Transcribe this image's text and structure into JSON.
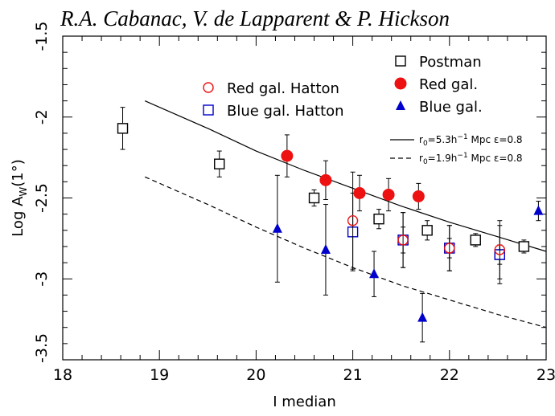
{
  "header": {
    "authors": "R.A. Cabanac, V. de Lapparent & P. Hickson"
  },
  "chart_data": {
    "type": "scatter",
    "xlabel": "I median",
    "ylabel_base": "Log A",
    "ylabel_sub": "W",
    "ylabel_tail": "(1°)",
    "xlim": [
      18,
      23
    ],
    "ylim": [
      -3.5,
      -1.5
    ],
    "xticks": [
      "18",
      "19",
      "20",
      "21",
      "22",
      "23"
    ],
    "yticks": [
      "-1.5",
      "-2",
      "-2.5",
      "-3",
      "-3.5"
    ],
    "series": [
      {
        "name": "Postman",
        "marker": "square-open",
        "color": "#000000",
        "points": [
          {
            "x": 18.62,
            "y": -2.07,
            "err": 0.13
          },
          {
            "x": 19.62,
            "y": -2.29,
            "err": 0.08
          },
          {
            "x": 20.6,
            "y": -2.5,
            "err": 0.05
          },
          {
            "x": 21.27,
            "y": -2.63,
            "err": 0.06
          },
          {
            "x": 21.52,
            "y": -2.76,
            "err": 0.08
          },
          {
            "x": 21.77,
            "y": -2.7,
            "err": 0.06
          },
          {
            "x": 22.0,
            "y": -2.81,
            "err": 0.06
          },
          {
            "x": 22.27,
            "y": -2.76,
            "err": 0.04
          },
          {
            "x": 22.52,
            "y": -2.85,
            "err": 0.06
          },
          {
            "x": 22.77,
            "y": -2.8,
            "err": 0.04
          }
        ]
      },
      {
        "name": "Red gal.",
        "marker": "circle-filled",
        "color": "#ee1111",
        "points": [
          {
            "x": 20.32,
            "y": -2.24,
            "err": 0.13
          },
          {
            "x": 20.72,
            "y": -2.39,
            "err": 0.12
          },
          {
            "x": 21.07,
            "y": -2.47,
            "err": 0.11
          },
          {
            "x": 21.37,
            "y": -2.48,
            "err": 0.1
          },
          {
            "x": 21.68,
            "y": -2.49,
            "err": 0.08
          }
        ]
      },
      {
        "name": "Blue gal.",
        "marker": "triangle-filled",
        "color": "#0000cc",
        "points": [
          {
            "x": 20.22,
            "y": -2.69,
            "err": 0.33
          },
          {
            "x": 20.72,
            "y": -2.82,
            "err": 0.28
          },
          {
            "x": 21.22,
            "y": -2.97,
            "err": 0.14
          },
          {
            "x": 21.72,
            "y": -3.24,
            "err": 0.15
          },
          {
            "x": 22.92,
            "y": -2.58,
            "err": 0.06
          }
        ]
      },
      {
        "name": "Red gal. Hatton",
        "marker": "circle-open",
        "color": "#ee1111",
        "points": [
          {
            "x": 21.0,
            "y": -2.64,
            "err": 0.3
          },
          {
            "x": 21.52,
            "y": -2.76,
            "err": 0.17
          },
          {
            "x": 22.0,
            "y": -2.81,
            "err": 0.14
          },
          {
            "x": 22.52,
            "y": -2.82,
            "err": 0.18
          }
        ]
      },
      {
        "name": "Blue gal. Hatton",
        "marker": "square-open",
        "color": "#0000cc",
        "points": [
          {
            "x": 21.0,
            "y": -2.71,
            "err": 0.24
          },
          {
            "x": 21.52,
            "y": -2.76,
            "err": 0.17
          },
          {
            "x": 22.0,
            "y": -2.81,
            "err": 0.14
          },
          {
            "x": 22.52,
            "y": -2.85,
            "err": 0.18
          }
        ]
      }
    ],
    "curves": [
      {
        "label_prefix": "r",
        "label_sub": "0",
        "label_mid": "=5.3h",
        "label_sup": "−1",
        "label_tail": "Mpc ε=0.8",
        "style": "solid",
        "x": [
          18.85,
          19.5,
          20.0,
          20.5,
          21.0,
          21.5,
          22.0,
          22.5,
          23.0
        ],
        "y": [
          -1.9,
          -2.07,
          -2.21,
          -2.33,
          -2.44,
          -2.55,
          -2.65,
          -2.74,
          -2.83
        ]
      },
      {
        "label_prefix": "r",
        "label_sub": "0",
        "label_mid": "=1.9h",
        "label_sup": "−1",
        "label_tail": "Mpc ε=0.8",
        "style": "dashed",
        "x": [
          18.85,
          19.5,
          20.0,
          20.5,
          21.0,
          21.5,
          22.0,
          22.5,
          23.0
        ],
        "y": [
          -2.37,
          -2.54,
          -2.68,
          -2.81,
          -2.93,
          -3.04,
          -3.13,
          -3.22,
          -3.3
        ]
      }
    ]
  }
}
